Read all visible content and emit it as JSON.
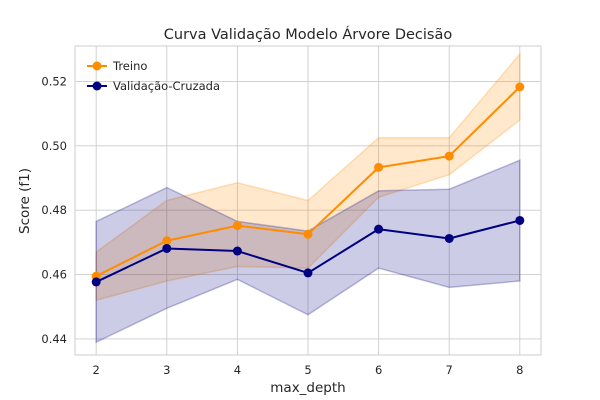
{
  "chart_data": {
    "type": "line",
    "title": "Curva Validação Modelo Árvore Decisão",
    "xlabel": "max_depth",
    "ylabel": "Score (f1)",
    "x": [
      2,
      3,
      4,
      5,
      6,
      7,
      8
    ],
    "xlim": [
      1.7,
      8.3
    ],
    "ylim": [
      0.435,
      0.531
    ],
    "yticks": [
      0.44,
      0.46,
      0.48,
      0.5,
      0.52
    ],
    "ytick_labels": [
      "0.44",
      "0.46",
      "0.48",
      "0.50",
      "0.52"
    ],
    "xtick_labels": [
      "2",
      "3",
      "4",
      "5",
      "6",
      "7",
      "8"
    ],
    "grid": true,
    "legend_position": "top-left",
    "series": [
      {
        "name": "Treino",
        "color": "#ff8c00",
        "values": [
          0.4595,
          0.4705,
          0.4752,
          0.4725,
          0.4933,
          0.4968,
          0.5183
        ],
        "lower": [
          0.452,
          0.458,
          0.4625,
          0.462,
          0.484,
          0.491,
          0.508
        ],
        "upper": [
          0.467,
          0.483,
          0.4885,
          0.483,
          0.5025,
          0.5025,
          0.5285
        ]
      },
      {
        "name": "Validação-Cruzada",
        "color": "#000080",
        "values": [
          0.4577,
          0.4681,
          0.4673,
          0.4605,
          0.4741,
          0.4712,
          0.4768
        ],
        "lower": [
          0.439,
          0.4495,
          0.4585,
          0.4475,
          0.462,
          0.456,
          0.458
        ],
        "upper": [
          0.4765,
          0.487,
          0.4765,
          0.4735,
          0.486,
          0.4865,
          0.4955
        ]
      }
    ]
  }
}
